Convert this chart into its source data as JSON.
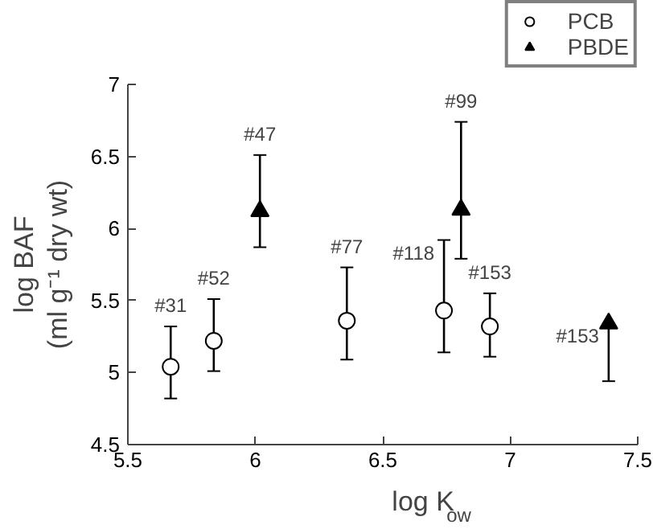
{
  "chart_data": {
    "type": "scatter",
    "xlabel": "log K$_{ow}$",
    "ylabel": "log BAF\n(ml g⁻¹ dry wt)",
    "xlim": [
      5.5,
      7.5
    ],
    "xticks": [
      5.5,
      6,
      6.5,
      7,
      7.5
    ],
    "ylim": [
      4.5,
      7
    ],
    "yticks": [
      4.5,
      5,
      5.5,
      6,
      6.5,
      7
    ],
    "grid": false,
    "legend": "top right",
    "series": [
      {
        "name": "PCB",
        "color": "#000000",
        "marker": "circle",
        "x": [
          5.668,
          5.837,
          6.359,
          6.74,
          6.92
        ],
        "values": [
          5.04,
          5.22,
          5.36,
          5.43,
          5.32
        ],
        "errors": [
          [
            4.82,
            5.32
          ],
          [
            5.01,
            5.51
          ],
          [
            5.09,
            5.73
          ],
          [
            5.14,
            5.92
          ],
          [
            5.11,
            5.55
          ]
        ]
      },
      {
        "name": "PBDE",
        "color": "#000000",
        "marker": "triangle",
        "x": [
          6.018,
          6.807,
          7.386
        ],
        "values": [
          6.12,
          6.13,
          5.34
        ],
        "errors": [
          [
            5.87,
            6.51
          ],
          [
            5.79,
            6.74
          ],
          [
            4.94,
            5.34
          ]
        ]
      }
    ],
    "annotations": [
      "#31",
      "#52",
      "#77",
      "#118",
      "#153",
      "#47",
      "#99",
      "#153"
    ]
  }
}
